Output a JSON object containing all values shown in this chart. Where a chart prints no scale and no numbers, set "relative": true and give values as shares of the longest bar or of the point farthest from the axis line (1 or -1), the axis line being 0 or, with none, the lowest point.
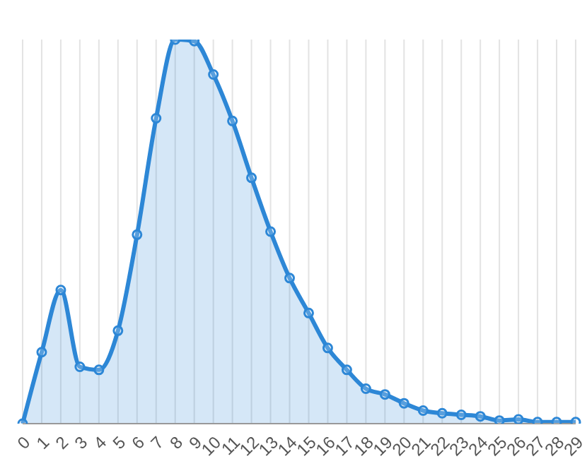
{
  "chart_data": {
    "type": "area",
    "relative": true,
    "grid": "x",
    "marker": "circle",
    "line_style": "solid",
    "categories": [
      "0",
      "1",
      "2",
      "3",
      "4",
      "5",
      "6",
      "7",
      "8",
      "9",
      "10",
      "11",
      "12",
      "13",
      "14",
      "15",
      "16",
      "17",
      "18",
      "19",
      "20",
      "21",
      "22",
      "23",
      "24",
      "25",
      "26",
      "27",
      "28",
      "29"
    ],
    "series": [
      {
        "color": "#2d87d6",
        "values": [
          0,
          0.186,
          0.348,
          0.148,
          0.14,
          0.242,
          0.492,
          0.795,
          1,
          0.996,
          0.909,
          0.788,
          0.64,
          0.5,
          0.379,
          0.288,
          0.197,
          0.14,
          0.091,
          0.076,
          0.053,
          0.034,
          0.027,
          0.023,
          0.019,
          0.008,
          0.011,
          0.004,
          0.004,
          0.004
        ]
      }
    ]
  }
}
